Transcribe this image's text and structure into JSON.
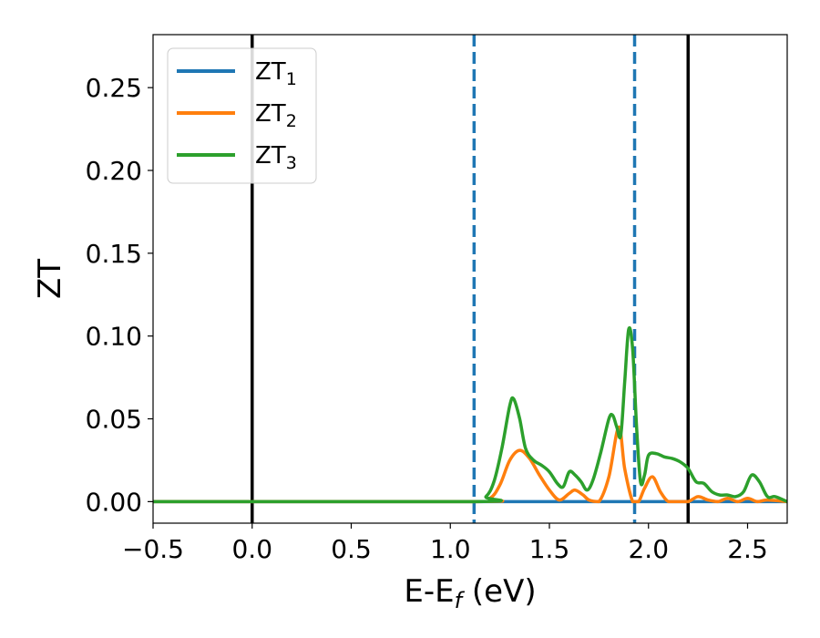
{
  "chart_data": {
    "type": "line",
    "title": "",
    "xlabel_main": "E-E",
    "xlabel_sub": "f",
    "xlabel_unit": " (eV)",
    "ylabel": "ZT",
    "xlim": [
      -0.5,
      2.7
    ],
    "ylim": [
      -0.013,
      0.282
    ],
    "xticks": [
      -0.5,
      0.0,
      0.5,
      1.0,
      1.5,
      2.0,
      2.5
    ],
    "xtick_labels": [
      "−0.5",
      "0.0",
      "0.5",
      "1.0",
      "1.5",
      "2.0",
      "2.5"
    ],
    "yticks": [
      0.0,
      0.05,
      0.1,
      0.15,
      0.2,
      0.25
    ],
    "ytick_labels": [
      "0.00",
      "0.05",
      "0.10",
      "0.15",
      "0.20",
      "0.25"
    ],
    "grid": false,
    "legend_position": "top-left",
    "vertical_lines": [
      {
        "x": 0.0,
        "style": "solid",
        "color": "#000000"
      },
      {
        "x": 2.2,
        "style": "solid",
        "color": "#000000"
      },
      {
        "x": 1.12,
        "style": "dashed",
        "color": "#1f77b4"
      },
      {
        "x": 1.93,
        "style": "dashed",
        "color": "#1f77b4"
      }
    ],
    "series": [
      {
        "name_main": "ZT",
        "name_sub": "1",
        "color": "#1f77b4",
        "x": [
          -0.5,
          2.7
        ],
        "y": [
          0.0,
          0.0
        ]
      },
      {
        "name_main": "ZT",
        "name_sub": "2",
        "color": "#ff7f0e",
        "x": [
          -0.5,
          1.12,
          1.2,
          1.25,
          1.3,
          1.35,
          1.4,
          1.45,
          1.5,
          1.55,
          1.6,
          1.63,
          1.67,
          1.7,
          1.75,
          1.8,
          1.85,
          1.88,
          1.92,
          1.95,
          1.98,
          2.02,
          2.06,
          2.1,
          2.15,
          2.2,
          2.25,
          2.3,
          2.35,
          2.4,
          2.45,
          2.5,
          2.55,
          2.6,
          2.7
        ],
        "y": [
          0.0,
          0.0,
          0.002,
          0.01,
          0.025,
          0.031,
          0.026,
          0.016,
          0.007,
          0.001,
          0.005,
          0.007,
          0.004,
          0.001,
          0.0,
          0.015,
          0.045,
          0.02,
          0.0,
          0.0,
          0.008,
          0.015,
          0.006,
          0.0,
          0.0,
          0.0,
          0.003,
          0.001,
          0.0,
          0.002,
          0.0,
          0.002,
          0.0,
          0.001,
          0.0
        ]
      },
      {
        "name_main": "ZT",
        "name_sub": "3",
        "color": "#2ca02c",
        "x": [
          -0.5,
          1.12,
          1.18,
          1.22,
          1.26,
          1.3,
          1.32,
          1.35,
          1.38,
          1.42,
          1.46,
          1.5,
          1.54,
          1.57,
          1.6,
          1.63,
          1.66,
          1.69,
          1.72,
          1.76,
          1.8,
          1.82,
          1.84,
          1.86,
          1.88,
          1.9,
          1.92,
          1.94,
          1.96,
          1.98,
          2.0,
          2.04,
          2.08,
          2.12,
          2.16,
          2.2,
          2.24,
          2.28,
          2.32,
          2.36,
          2.4,
          2.44,
          2.48,
          2.52,
          2.56,
          2.6,
          2.64,
          2.7
        ],
        "y": [
          0.0,
          0.0,
          0.003,
          0.012,
          0.032,
          0.058,
          0.062,
          0.05,
          0.032,
          0.025,
          0.022,
          0.018,
          0.011,
          0.009,
          0.018,
          0.016,
          0.012,
          0.007,
          0.013,
          0.03,
          0.05,
          0.052,
          0.045,
          0.04,
          0.072,
          0.104,
          0.092,
          0.045,
          0.012,
          0.016,
          0.028,
          0.029,
          0.027,
          0.026,
          0.024,
          0.02,
          0.012,
          0.011,
          0.006,
          0.004,
          0.004,
          0.003,
          0.006,
          0.016,
          0.012,
          0.003,
          0.003,
          0.0
        ]
      }
    ]
  }
}
